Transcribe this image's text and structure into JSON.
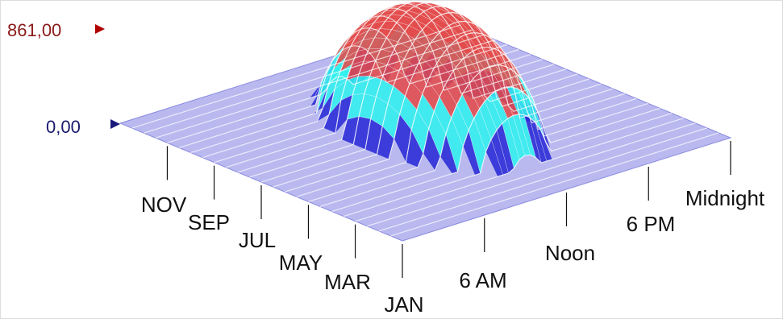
{
  "chart_data": {
    "type": "surface-3d",
    "title": "",
    "z_range": [
      0,
      861
    ],
    "z_labels": {
      "max": "861,00",
      "min": "0,00"
    },
    "month_axis": {
      "ticks": [
        "JAN",
        "MAR",
        "MAY",
        "JUL",
        "SEP",
        "NOV"
      ]
    },
    "time_axis": {
      "ticks": [
        "6 AM",
        "Noon",
        "6 PM",
        "Midnight"
      ]
    },
    "color_bands": [
      {
        "from": 0,
        "to": 200,
        "color": "#2a2ad6"
      },
      {
        "from": 200,
        "to": 420,
        "color": "#2ff0ee"
      },
      {
        "from": 420,
        "to": 861,
        "color": "#e34a4a"
      }
    ],
    "colors": {
      "base_plane": "#b9b9f0",
      "max_marker": "#b00000",
      "min_marker": "#1a1a7a",
      "z_max_text": "#8b1a1a",
      "z_min_text": "#1a1a6e"
    }
  }
}
